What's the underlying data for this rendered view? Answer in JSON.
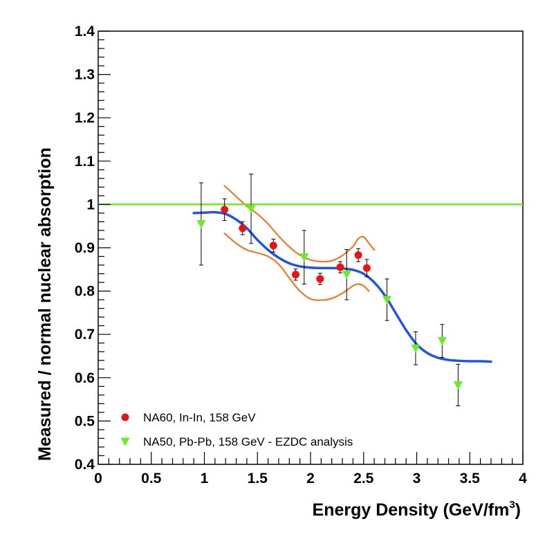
{
  "chart_data": {
    "type": "scatter",
    "title": "",
    "xlabel": "Energy Density (GeV/fm",
    "xlabel_sup": "3",
    "xlabel_close": ")",
    "ylabel": "Measured / normal nuclear absorption",
    "xlim": [
      0,
      4
    ],
    "ylim": [
      0.4,
      1.4
    ],
    "x_ticks": [
      "0",
      "0.5",
      "1",
      "1.5",
      "2",
      "2.5",
      "3",
      "3.5",
      "4"
    ],
    "y_ticks": [
      "0.4",
      "0.5",
      "0.6",
      "0.7",
      "0.8",
      "0.9",
      "1",
      "1.1",
      "1.2",
      "1.3",
      "1.4"
    ],
    "grid": false,
    "reference_line": {
      "y": 1.0,
      "color": "#66ee22"
    },
    "series": [
      {
        "name": "NA60, In-In, 158 GeV",
        "marker": "circle",
        "color": "#ee1111",
        "points": [
          {
            "x": 1.19,
            "y": 0.988,
            "err": 0.025
          },
          {
            "x": 1.36,
            "y": 0.945,
            "err": 0.015
          },
          {
            "x": 1.65,
            "y": 0.905,
            "err": 0.015
          },
          {
            "x": 1.86,
            "y": 0.838,
            "err": 0.013
          },
          {
            "x": 2.09,
            "y": 0.828,
            "err": 0.013
          },
          {
            "x": 2.28,
            "y": 0.855,
            "err": 0.013
          },
          {
            "x": 2.45,
            "y": 0.883,
            "err": 0.015
          },
          {
            "x": 2.53,
            "y": 0.853,
            "err": 0.02
          }
        ]
      },
      {
        "name": "NA50, Pb-Pb, 158 GeV - EZDC analysis",
        "marker": "triangle-down",
        "color": "#66ee22",
        "points": [
          {
            "x": 0.97,
            "y": 0.955,
            "err": 0.095
          },
          {
            "x": 1.44,
            "y": 0.99,
            "err": 0.08
          },
          {
            "x": 1.94,
            "y": 0.878,
            "err": 0.062
          },
          {
            "x": 2.34,
            "y": 0.838,
            "err": 0.058
          },
          {
            "x": 2.72,
            "y": 0.78,
            "err": 0.048
          },
          {
            "x": 2.99,
            "y": 0.668,
            "err": 0.038
          },
          {
            "x": 3.24,
            "y": 0.685,
            "err": 0.038
          },
          {
            "x": 3.39,
            "y": 0.583,
            "err": 0.048
          }
        ]
      }
    ],
    "curves": [
      {
        "name": "fit",
        "color": "#2255dd",
        "points": [
          [
            0.9,
            0.98
          ],
          [
            1.0,
            0.981
          ],
          [
            1.1,
            0.982
          ],
          [
            1.2,
            0.978
          ],
          [
            1.3,
            0.965
          ],
          [
            1.4,
            0.945
          ],
          [
            1.5,
            0.918
          ],
          [
            1.6,
            0.895
          ],
          [
            1.7,
            0.877
          ],
          [
            1.8,
            0.864
          ],
          [
            1.9,
            0.857
          ],
          [
            2.0,
            0.854
          ],
          [
            2.1,
            0.853
          ],
          [
            2.2,
            0.853
          ],
          [
            2.3,
            0.852
          ],
          [
            2.4,
            0.849
          ],
          [
            2.5,
            0.84
          ],
          [
            2.6,
            0.82
          ],
          [
            2.7,
            0.79
          ],
          [
            2.8,
            0.75
          ],
          [
            2.9,
            0.71
          ],
          [
            3.0,
            0.677
          ],
          [
            3.1,
            0.657
          ],
          [
            3.2,
            0.646
          ],
          [
            3.3,
            0.641
          ],
          [
            3.4,
            0.639
          ],
          [
            3.5,
            0.638
          ],
          [
            3.6,
            0.638
          ],
          [
            3.7,
            0.637
          ]
        ]
      },
      {
        "name": "upper band",
        "color": "#ee7722",
        "points": [
          [
            1.19,
            1.043
          ],
          [
            1.3,
            1.018
          ],
          [
            1.4,
            0.996
          ],
          [
            1.5,
            0.978
          ],
          [
            1.6,
            0.955
          ],
          [
            1.7,
            0.927
          ],
          [
            1.8,
            0.902
          ],
          [
            1.9,
            0.883
          ],
          [
            2.0,
            0.872
          ],
          [
            2.1,
            0.868
          ],
          [
            2.2,
            0.87
          ],
          [
            2.3,
            0.882
          ],
          [
            2.4,
            0.903
          ],
          [
            2.45,
            0.921
          ],
          [
            2.5,
            0.925
          ],
          [
            2.55,
            0.91
          ],
          [
            2.6,
            0.895
          ]
        ]
      },
      {
        "name": "lower band",
        "color": "#ee7722",
        "points": [
          [
            1.19,
            0.933
          ],
          [
            1.3,
            0.91
          ],
          [
            1.4,
            0.895
          ],
          [
            1.5,
            0.888
          ],
          [
            1.6,
            0.88
          ],
          [
            1.7,
            0.862
          ],
          [
            1.8,
            0.83
          ],
          [
            1.9,
            0.8
          ],
          [
            2.0,
            0.782
          ],
          [
            2.1,
            0.779
          ],
          [
            2.2,
            0.783
          ],
          [
            2.3,
            0.795
          ],
          [
            2.4,
            0.812
          ],
          [
            2.45,
            0.816
          ],
          [
            2.5,
            0.812
          ],
          [
            2.55,
            0.8
          ]
        ]
      }
    ],
    "legend": {
      "position": "bottom-left",
      "entries": [
        {
          "label": "NA60, In-In, 158 GeV",
          "marker": "circle",
          "color": "#ee1111"
        },
        {
          "label": "NA50, Pb-Pb, 158 GeV - EZDC analysis",
          "marker": "triangle-down",
          "color": "#66ee22"
        }
      ]
    }
  }
}
